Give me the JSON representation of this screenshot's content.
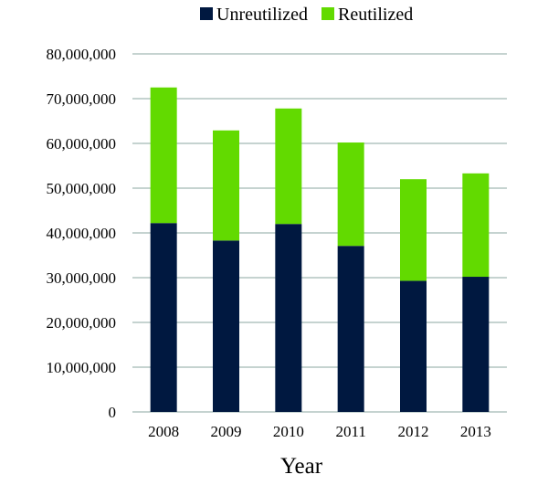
{
  "chart_data": {
    "type": "bar",
    "stacked": true,
    "title": "",
    "xlabel": "Year",
    "ylabel": "",
    "categories": [
      "2008",
      "2009",
      "2010",
      "2011",
      "2012",
      "2013"
    ],
    "series": [
      {
        "name": "Unreutilized",
        "color": "#001840",
        "values": [
          42200000,
          38300000,
          42000000,
          37100000,
          29300000,
          30200000
        ]
      },
      {
        "name": "Reutilized",
        "color": "#62DA00",
        "values": [
          30300000,
          24600000,
          25800000,
          23100000,
          22700000,
          23100000
        ]
      }
    ],
    "ylim": [
      0,
      80000000
    ],
    "yticks": [
      0,
      10000000,
      20000000,
      30000000,
      40000000,
      50000000,
      60000000,
      70000000,
      80000000
    ],
    "ytick_labels": [
      "0",
      "10,000,000",
      "20,000,000",
      "30,000,000",
      "40,000,000",
      "50,000,000",
      "60,000,000",
      "70,000,000",
      "80,000,000"
    ],
    "grid": true,
    "grid_color": "#C5D3D0",
    "legend_position": "top"
  }
}
